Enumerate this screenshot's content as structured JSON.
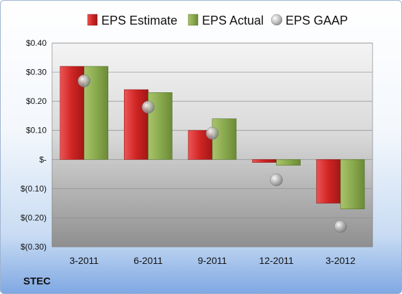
{
  "ticker": "STEC",
  "chart_data": {
    "type": "bar",
    "categories": [
      "3-2011",
      "6-2011",
      "9-2011",
      "12-2011",
      "3-2012"
    ],
    "series": [
      {
        "name": "EPS Estimate",
        "values": [
          0.32,
          0.24,
          0.1,
          -0.01,
          -0.15
        ],
        "color": "#cc2a2a"
      },
      {
        "name": "EPS Actual",
        "values": [
          0.32,
          0.23,
          0.14,
          -0.02,
          -0.17
        ],
        "color": "#8aaa4e"
      },
      {
        "name": "EPS GAAP",
        "values": [
          0.27,
          0.18,
          0.09,
          -0.07,
          -0.23
        ],
        "color": "#a9a9a9",
        "marker": "sphere"
      }
    ],
    "ylim": [
      -0.3,
      0.4
    ],
    "yticks": [
      {
        "value": 0.4,
        "label": "$0.40"
      },
      {
        "value": 0.3,
        "label": "$0.30"
      },
      {
        "value": 0.2,
        "label": "$0.20"
      },
      {
        "value": 0.1,
        "label": "$0.10"
      },
      {
        "value": 0.0,
        "label": "$-"
      },
      {
        "value": -0.1,
        "label": "$(0.10)"
      },
      {
        "value": -0.2,
        "label": "$(0.20)"
      },
      {
        "value": -0.3,
        "label": "$(0.30)"
      }
    ],
    "grid": true,
    "legend": "top"
  }
}
